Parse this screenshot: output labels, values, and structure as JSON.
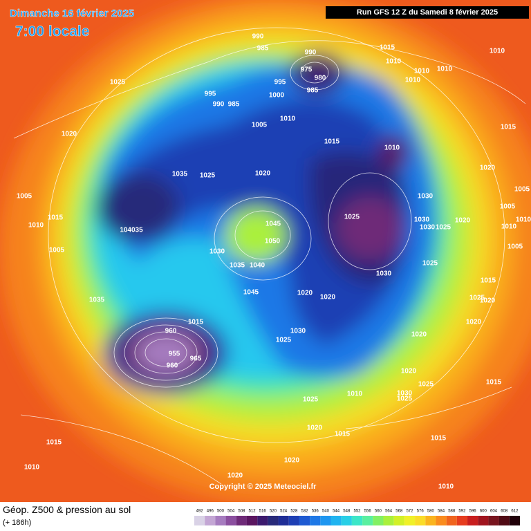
{
  "header": {
    "date": "Dimanche 16 février 2025",
    "time": "7:00 locale",
    "run": "Run GFS 12 Z du Samedi 8 février 2025"
  },
  "map": {
    "pressure_labels": [
      990,
      985,
      990,
      1015,
      1010,
      1010,
      975,
      1010,
      1010,
      980,
      995,
      1010,
      1025,
      985,
      995,
      1000,
      990,
      985,
      1010,
      1005,
      1015,
      1020,
      1015,
      1010,
      1020,
      1035,
      1025,
      1020,
      1005,
      1005,
      1030,
      1005,
      1015,
      1025,
      1030,
      1020,
      1045,
      1010,
      1030,
      1025,
      1010,
      1010,
      104035,
      1050,
      1005,
      1005,
      1030,
      1035,
      1040,
      1025,
      1030,
      1015,
      1035,
      1045,
      1020,
      1020,
      1025,
      1020,
      1020,
      1015,
      1030,
      960,
      1025,
      1020,
      955,
      965,
      960,
      1020,
      1025,
      1015,
      1010,
      1030,
      1025,
      1025,
      1020,
      1015,
      1015,
      1015,
      1010,
      1020,
      1020,
      1010
    ],
    "copyright": "Copyright © 2025 Meteociel.fr"
  },
  "footer": {
    "title": "Géop. Z500 & pression au sol",
    "lead": "(+ 186h)"
  },
  "legend": {
    "values": [
      492,
      496,
      500,
      504,
      508,
      512,
      516,
      520,
      524,
      528,
      532,
      536,
      540,
      544,
      548,
      552,
      556,
      560,
      564,
      568,
      572,
      576,
      580,
      584,
      588,
      592,
      596,
      600,
      604,
      608,
      612
    ],
    "colors": [
      "#d9d2e6",
      "#c3a6d4",
      "#a67cbf",
      "#8b4f9f",
      "#6e2a78",
      "#5a1560",
      "#3c1a6e",
      "#282a7a",
      "#1f2d96",
      "#1e3fb4",
      "#1e5ad2",
      "#1e78e6",
      "#1e96f0",
      "#20b4f0",
      "#28cfe6",
      "#3ce6c8",
      "#5aefa0",
      "#82f064",
      "#aaf03c",
      "#d2f028",
      "#f0f028",
      "#fadc28",
      "#fab41e",
      "#fa8c1e",
      "#f0641e",
      "#e63c1e",
      "#c81e1e",
      "#a0141e",
      "#78141e",
      "#500a14",
      "#200008"
    ]
  }
}
